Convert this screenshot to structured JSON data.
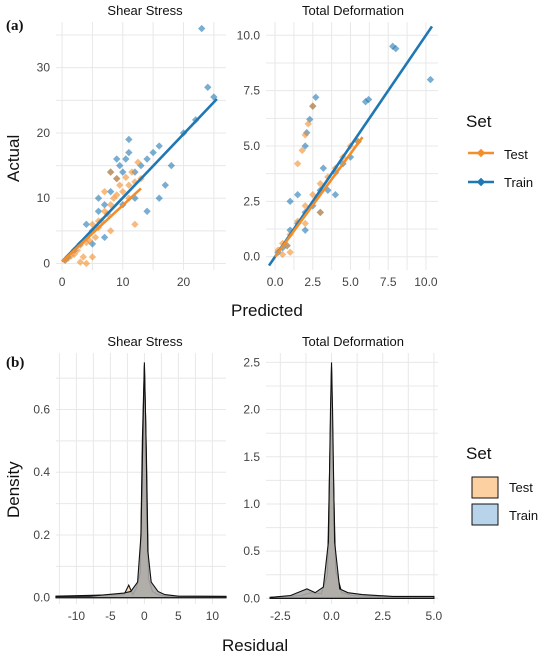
{
  "panels": {
    "a": {
      "letter": "(a)"
    },
    "b": {
      "letter": "(b)"
    }
  },
  "legends": {
    "a": {
      "title": "Set",
      "items": [
        {
          "label": "Test",
          "color": "#F28E2B"
        },
        {
          "label": "Train",
          "color": "#1F77B4"
        }
      ]
    },
    "b": {
      "title": "Set",
      "items": [
        {
          "label": "Test",
          "color": "#FDD0A2"
        },
        {
          "label": "Train",
          "color": "#B8D4EA"
        }
      ]
    }
  },
  "colors": {
    "test": "#F28E2B",
    "train": "#1F77B4",
    "test_fill": "#FDD0A2",
    "train_fill": "#B8D4EA",
    "overlap_fill": "#A8A8A8",
    "grid": "#E8E8E8"
  },
  "axis_titles": {
    "a_x": "Predicted",
    "a_y": "Actual",
    "b_x": "Residual",
    "b_y": "Density"
  },
  "chart_data": [
    {
      "type": "scatter",
      "facet": "Shear Stress",
      "title": "Shear Stress",
      "xlim": [
        -1,
        27
      ],
      "ylim": [
        -1,
        37
      ],
      "xticks": [
        0,
        10,
        20
      ],
      "yticks": [
        0,
        10,
        20,
        30
      ],
      "series": [
        {
          "name": "Test",
          "fit": [
            [
              0,
              0.3
            ],
            [
              13,
              11.5
            ]
          ],
          "points": [
            [
              0.5,
              0.5
            ],
            [
              1,
              0.8
            ],
            [
              1.5,
              1.2
            ],
            [
              2,
              1.4
            ],
            [
              2.5,
              2
            ],
            [
              3,
              2.8
            ],
            [
              3.5,
              1
            ],
            [
              4,
              3.2
            ],
            [
              4.5,
              3.5
            ],
            [
              5,
              6
            ],
            [
              5.5,
              4
            ],
            [
              6,
              5.5
            ],
            [
              6.5,
              6.5
            ],
            [
              7,
              8
            ],
            [
              7.5,
              7.6
            ],
            [
              8,
              9
            ],
            [
              8.5,
              10
            ],
            [
              9,
              10.5
            ],
            [
              9.5,
              12
            ],
            [
              10,
              11
            ],
            [
              10.5,
              13.2
            ],
            [
              11,
              12
            ],
            [
              11.5,
              14
            ],
            [
              12,
              12.5
            ],
            [
              12.5,
              15.5
            ],
            [
              13,
              13
            ],
            [
              4,
              0
            ],
            [
              3,
              0.2
            ],
            [
              5,
              1
            ],
            [
              6,
              6.5
            ],
            [
              8,
              14
            ],
            [
              9,
              13
            ],
            [
              7,
              11
            ],
            [
              11,
              10
            ],
            [
              12,
              6
            ],
            [
              8,
              5
            ]
          ]
        },
        {
          "name": "Train",
          "fit": [
            [
              0,
              0.3
            ],
            [
              25.5,
              25.2
            ]
          ],
          "points": [
            [
              0.5,
              0.5
            ],
            [
              1,
              1
            ],
            [
              2,
              2
            ],
            [
              3,
              3
            ],
            [
              4,
              6
            ],
            [
              5,
              5
            ],
            [
              6,
              8
            ],
            [
              7,
              9
            ],
            [
              8,
              11
            ],
            [
              9,
              13
            ],
            [
              9.5,
              15
            ],
            [
              10,
              14
            ],
            [
              10.5,
              16
            ],
            [
              11,
              17
            ],
            [
              12,
              14
            ],
            [
              13,
              15
            ],
            [
              14,
              16
            ],
            [
              15,
              17
            ],
            [
              16,
              18
            ],
            [
              17,
              12
            ],
            [
              18,
              15
            ],
            [
              20,
              20
            ],
            [
              22,
              22
            ],
            [
              24,
              27
            ],
            [
              25,
              25.5
            ],
            [
              23,
              36
            ],
            [
              10,
              9
            ],
            [
              12,
              10
            ],
            [
              14,
              8
            ],
            [
              16,
              10
            ],
            [
              5,
              3
            ],
            [
              7,
              4
            ],
            [
              8,
              14
            ],
            [
              11,
              19
            ],
            [
              6,
              10
            ],
            [
              9,
              16
            ]
          ]
        }
      ]
    },
    {
      "type": "scatter",
      "facet": "Total Deformation",
      "title": "Total Deformation",
      "xlim": [
        -0.6,
        10.8
      ],
      "ylim": [
        -0.6,
        10.6
      ],
      "xticks": [
        0.0,
        2.5,
        5.0,
        7.5,
        10.0
      ],
      "yticks": [
        0.0,
        2.5,
        5.0,
        7.5,
        10.0
      ],
      "series": [
        {
          "name": "Test",
          "fit": [
            [
              0,
              0
            ],
            [
              5.8,
              5.4
            ]
          ],
          "points": [
            [
              0.2,
              0.3
            ],
            [
              0.5,
              0.6
            ],
            [
              0.8,
              0.5
            ],
            [
              1,
              1
            ],
            [
              1.5,
              1.6
            ],
            [
              2,
              2.3
            ],
            [
              2.5,
              2.8
            ],
            [
              3,
              3.3
            ],
            [
              3.5,
              3.6
            ],
            [
              4,
              4
            ],
            [
              4.5,
              4.5
            ],
            [
              5,
              5
            ],
            [
              5.5,
              5.2
            ],
            [
              2,
              5.5
            ],
            [
              2.2,
              6
            ],
            [
              1.8,
              4.8
            ],
            [
              1.5,
              4.2
            ],
            [
              2.5,
              6.8
            ],
            [
              1,
              0.2
            ],
            [
              0.5,
              0.1
            ],
            [
              3,
              2
            ],
            [
              2,
              1.5
            ]
          ]
        },
        {
          "name": "Train",
          "fit": [
            [
              -0.4,
              -0.4
            ],
            [
              10.4,
              10.4
            ]
          ],
          "points": [
            [
              0.2,
              0.2
            ],
            [
              0.5,
              0.4
            ],
            [
              1,
              1.2
            ],
            [
              1.5,
              1.5
            ],
            [
              2,
              2
            ],
            [
              2.5,
              2.3
            ],
            [
              2.7,
              7.2
            ],
            [
              2.5,
              6.8
            ],
            [
              2.3,
              6.2
            ],
            [
              2,
              5
            ],
            [
              2.1,
              5.6
            ],
            [
              3,
              3
            ],
            [
              3.5,
              3
            ],
            [
              4,
              3.8
            ],
            [
              4.5,
              4.2
            ],
            [
              5,
              4.5
            ],
            [
              5.5,
              5.2
            ],
            [
              6,
              7
            ],
            [
              6.2,
              7.1
            ],
            [
              7.8,
              9.5
            ],
            [
              8,
              9.4
            ],
            [
              10.3,
              8
            ],
            [
              1,
              2.5
            ],
            [
              3,
              2
            ],
            [
              4,
              2.8
            ],
            [
              2,
              1.2
            ],
            [
              1.5,
              2.8
            ],
            [
              3.2,
              4
            ],
            [
              0.8,
              0.5
            ]
          ]
        }
      ]
    },
    {
      "type": "area",
      "facet": "Shear Stress",
      "title": "Shear Stress",
      "xlim": [
        -13,
        12
      ],
      "ylim": [
        -0.02,
        0.78
      ],
      "xticks": [
        -10,
        -5,
        0,
        5,
        10
      ],
      "yticks": [
        0.0,
        0.2,
        0.4,
        0.6
      ],
      "density_peak": 0.75,
      "series": [
        {
          "name": "Test",
          "x": [
            -13,
            -3,
            -2.3,
            -1.7,
            -1.2,
            -0.6,
            -0.3,
            0,
            0.3,
            0.6,
            1.2,
            2,
            3,
            12
          ],
          "y": [
            0.005,
            0.01,
            0.04,
            0.01,
            0.03,
            0.08,
            0.5,
            0.75,
            0.45,
            0.06,
            0.02,
            0.01,
            0.005,
            0.004
          ]
        },
        {
          "name": "Train",
          "x": [
            -13,
            -8,
            -3,
            -2,
            -1,
            -0.5,
            -0.2,
            0,
            0.2,
            0.5,
            1,
            2,
            3,
            5,
            12
          ],
          "y": [
            0.004,
            0.005,
            0.015,
            0.02,
            0.05,
            0.2,
            0.55,
            0.74,
            0.55,
            0.15,
            0.05,
            0.02,
            0.01,
            0.005,
            0.004
          ]
        }
      ]
    },
    {
      "type": "area",
      "facet": "Total Deformation",
      "title": "Total Deformation",
      "xlim": [
        -3.2,
        5.2
      ],
      "ylim": [
        -0.06,
        2.6
      ],
      "xticks": [
        -2.5,
        0.0,
        2.5,
        5.0
      ],
      "yticks": [
        0.0,
        0.5,
        1.0,
        1.5,
        2.0,
        2.5
      ],
      "density_peak": 2.5,
      "series": [
        {
          "name": "Test",
          "x": [
            -3,
            -1.5,
            -1,
            -0.5,
            -0.2,
            -0.08,
            0,
            0.08,
            0.2,
            0.5,
            1,
            2,
            5
          ],
          "y": [
            0.01,
            0.03,
            0.06,
            0.05,
            0.25,
            1.5,
            2.45,
            1.4,
            0.3,
            0.06,
            0.03,
            0.02,
            0.01
          ]
        },
        {
          "name": "Train",
          "x": [
            -3,
            -2,
            -1.2,
            -0.8,
            -0.4,
            -0.15,
            -0.05,
            0,
            0.05,
            0.15,
            0.4,
            0.8,
            1.5,
            3,
            5
          ],
          "y": [
            0.01,
            0.03,
            0.1,
            0.06,
            0.12,
            0.6,
            2.0,
            2.5,
            2.0,
            0.6,
            0.1,
            0.06,
            0.04,
            0.02,
            0.02
          ]
        }
      ]
    }
  ]
}
